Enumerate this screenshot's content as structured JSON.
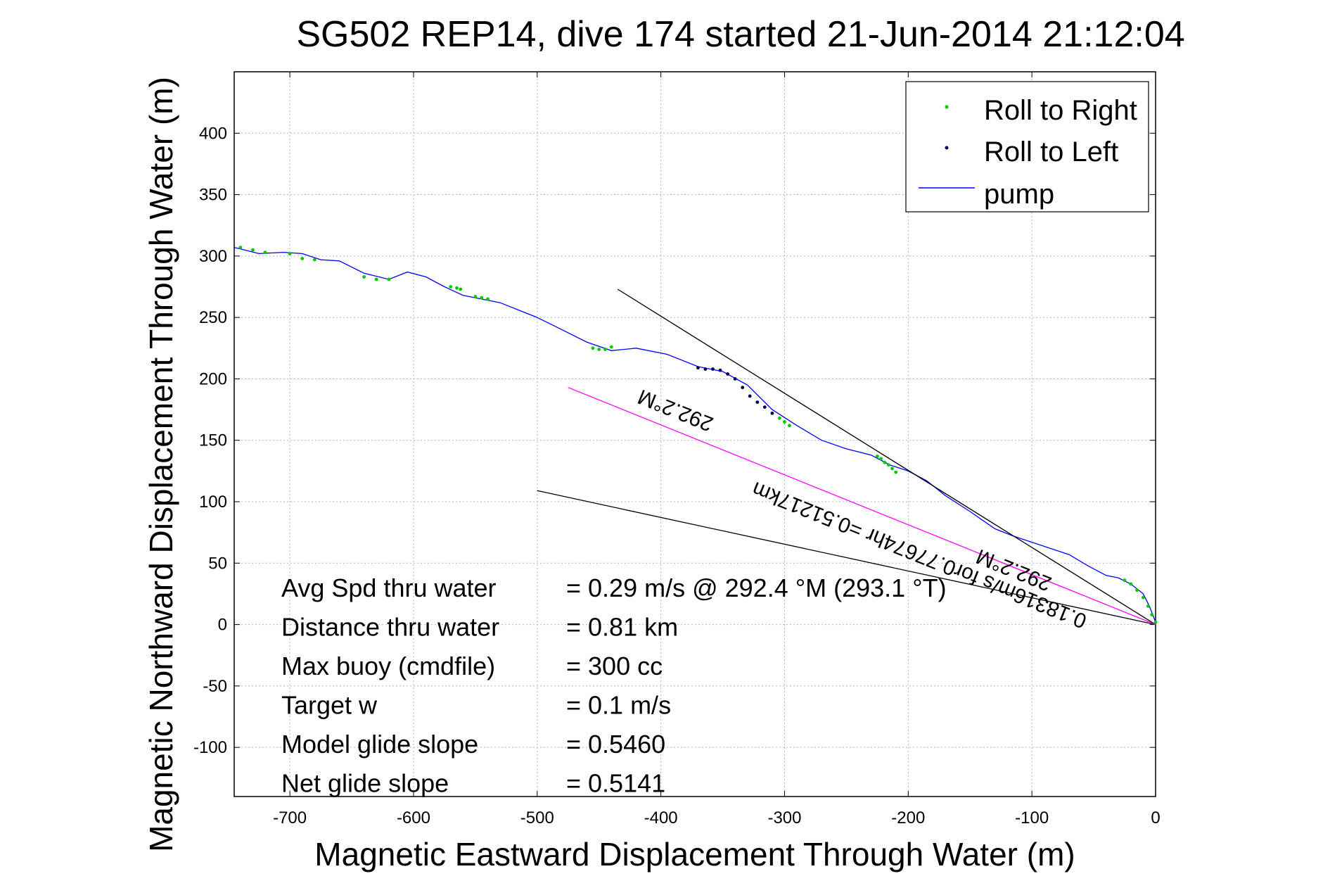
{
  "chart_data": {
    "type": "line",
    "title": "SG502 REP14, dive 174 started 21-Jun-2014 21:12:04",
    "xlabel": "Magnetic Eastward Displacement Through Water (m)",
    "ylabel": "Magnetic Northward Displacement Through Water (m)",
    "xlim": [
      -745,
      0
    ],
    "ylim": [
      -140,
      450
    ],
    "xticks": [
      -700,
      -600,
      -500,
      -400,
      -300,
      -200,
      -100,
      0
    ],
    "yticks": [
      -100,
      -50,
      0,
      50,
      100,
      150,
      200,
      250,
      300,
      350,
      400
    ],
    "grid": true,
    "legend_position": "top-right",
    "colors": {
      "roll_right": "#00c800",
      "roll_left": "#000050",
      "pump": "#0000ff",
      "current": "#ff00ff",
      "heading_lines": "#000000"
    },
    "series": [
      {
        "name": "pump",
        "style": "line",
        "x": [
          0,
          -5,
          -10,
          -20,
          -30,
          -40,
          -55,
          -70,
          -85,
          -100,
          -115,
          -130,
          -150,
          -170,
          -185,
          -200,
          -215,
          -230,
          -250,
          -270,
          -290,
          -310,
          -330,
          -350,
          -370,
          -395,
          -420,
          -440,
          -460,
          -480,
          -500,
          -530,
          -560,
          -575,
          -590,
          -605,
          -620,
          -640,
          -660,
          -675,
          -690,
          -705,
          -725,
          -745
        ],
        "y": [
          2,
          15,
          25,
          33,
          38,
          40,
          48,
          57,
          62,
          67,
          72,
          78,
          92,
          105,
          117,
          125,
          130,
          138,
          143,
          150,
          162,
          175,
          195,
          206,
          210,
          220,
          225,
          223,
          230,
          240,
          250,
          262,
          268,
          275,
          283,
          287,
          281,
          286,
          296,
          297,
          302,
          303,
          302,
          307
        ]
      },
      {
        "name": "Roll to Right",
        "style": "points",
        "x": [
          0,
          -3,
          -6,
          -10,
          -15,
          -20,
          -25,
          -225,
          -222,
          -219,
          -216,
          -213,
          -210,
          -296,
          -300,
          -304,
          -455,
          -450,
          -445,
          -440,
          -570,
          -565,
          -562,
          -540,
          -545,
          -550,
          -640,
          -630,
          -620,
          -680,
          -690,
          -700,
          -720,
          -730,
          -740
        ],
        "y": [
          2,
          8,
          15,
          22,
          28,
          33,
          36,
          137,
          135,
          132,
          130,
          127,
          124,
          162,
          165,
          168,
          225,
          224,
          224,
          226,
          275,
          274,
          273,
          265,
          266,
          267,
          283,
          281,
          281,
          297,
          298,
          302,
          303,
          305,
          307
        ]
      },
      {
        "name": "Roll to Left",
        "style": "points",
        "x": [
          -310,
          -316,
          -322,
          -328,
          -334,
          -340,
          -346,
          -352,
          -358,
          -364,
          -370
        ],
        "y": [
          172,
          177,
          181,
          186,
          193,
          200,
          204,
          207,
          208,
          208,
          209
        ]
      },
      {
        "name": "",
        "style": "line",
        "x": [
          0,
          -435
        ],
        "y": [
          0,
          273
        ]
      },
      {
        "name": "",
        "style": "line",
        "x": [
          0,
          -500
        ],
        "y": [
          0,
          109
        ]
      },
      {
        "name": "",
        "style": "line",
        "x": [
          0,
          -475
        ],
        "y": [
          0,
          193
        ]
      }
    ],
    "legend": [
      "Roll to Right",
      "Roll to Left",
      "pump"
    ],
    "annotations": {
      "rotated_current": "0.18316m/s for0.77674hr =0.51217km",
      "rotated_current_heading": "292.2°M",
      "rotated_glide_heading": "292.2°M",
      "stats": [
        {
          "label": "Avg Spd thru water",
          "value": "=  0.29 m/s @ 292.4 °M (293.1 °T)"
        },
        {
          "label": "Distance thru water",
          "value": "=  0.81 km"
        },
        {
          "label": "Max buoy (cmdfile)",
          "value": "= 300 cc"
        },
        {
          "label": "Target w",
          "value": "= 0.1 m/s"
        },
        {
          "label": "Model glide slope",
          "value": "= 0.5460"
        },
        {
          "label": "Net glide slope",
          "value": "= 0.5141"
        }
      ]
    }
  }
}
